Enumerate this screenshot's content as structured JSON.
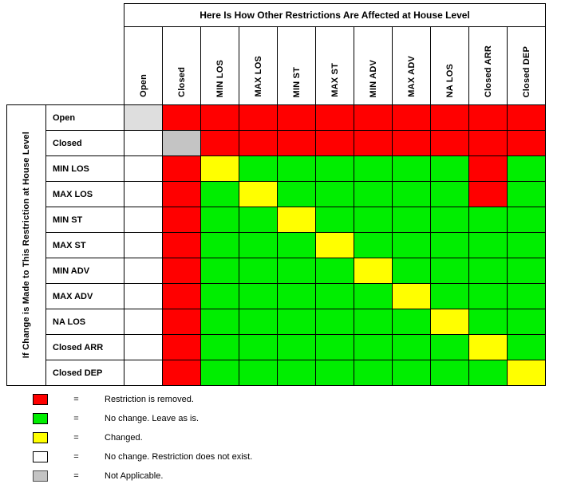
{
  "title": "Here Is How Other Restrictions Are Affected at House Level",
  "left_axis_label": "If Change is Made to This Restriction at House Level",
  "columns": [
    "Open",
    "Closed",
    "MIN LOS",
    "MAX LOS",
    "MIN ST",
    "MAX ST",
    "MIN ADV",
    "MAX ADV",
    "NA LOS",
    "Closed ARR",
    "Closed DEP"
  ],
  "rows": [
    "Open",
    "Closed",
    "MIN LOS",
    "MAX LOS",
    "MIN ST",
    "MAX ST",
    "MIN ADV",
    "MAX ADV",
    "NA LOS",
    "Closed ARR",
    "Closed DEP"
  ],
  "colors": {
    "R": "#ff0000",
    "G": "#00ee00",
    "Y": "#ffff00",
    "W": "#ffffff",
    "N": "#c4c4c4",
    "L": "#dedede"
  },
  "color_meanings": {
    "R": "Restriction is removed.",
    "G": "No change. Leave as is.",
    "Y": "Changed.",
    "W": "No change. Restriction does not exist.",
    "N": "Not Applicable.",
    "L": "Not Applicable."
  },
  "matrix": [
    [
      "L",
      "R",
      "R",
      "R",
      "R",
      "R",
      "R",
      "R",
      "R",
      "R",
      "R"
    ],
    [
      "W",
      "N",
      "R",
      "R",
      "R",
      "R",
      "R",
      "R",
      "R",
      "R",
      "R"
    ],
    [
      "W",
      "R",
      "Y",
      "G",
      "G",
      "G",
      "G",
      "G",
      "G",
      "R",
      "G"
    ],
    [
      "W",
      "R",
      "G",
      "Y",
      "G",
      "G",
      "G",
      "G",
      "G",
      "R",
      "G"
    ],
    [
      "W",
      "R",
      "G",
      "G",
      "Y",
      "G",
      "G",
      "G",
      "G",
      "G",
      "G"
    ],
    [
      "W",
      "R",
      "G",
      "G",
      "G",
      "Y",
      "G",
      "G",
      "G",
      "G",
      "G"
    ],
    [
      "W",
      "R",
      "G",
      "G",
      "G",
      "G",
      "Y",
      "G",
      "G",
      "G",
      "G"
    ],
    [
      "W",
      "R",
      "G",
      "G",
      "G",
      "G",
      "G",
      "Y",
      "G",
      "G",
      "G"
    ],
    [
      "W",
      "R",
      "G",
      "G",
      "G",
      "G",
      "G",
      "G",
      "Y",
      "G",
      "G"
    ],
    [
      "W",
      "R",
      "G",
      "G",
      "G",
      "G",
      "G",
      "G",
      "G",
      "Y",
      "G"
    ],
    [
      "W",
      "R",
      "G",
      "G",
      "G",
      "G",
      "G",
      "G",
      "G",
      "G",
      "Y"
    ]
  ],
  "legend": {
    "equals": "=",
    "items": [
      {
        "color": "#ff0000",
        "border": "#000000",
        "label": "Restriction is removed."
      },
      {
        "color": "#00ee00",
        "border": "#000000",
        "label": "No change. Leave as is."
      },
      {
        "color": "#ffff00",
        "border": "#000000",
        "label": "Changed."
      },
      {
        "color": "#ffffff",
        "border": "#000000",
        "label": "No change. Restriction does not exist."
      },
      {
        "color": "#c4c4c4",
        "border": "#4d4d4d",
        "label": "Not Applicable."
      }
    ]
  }
}
